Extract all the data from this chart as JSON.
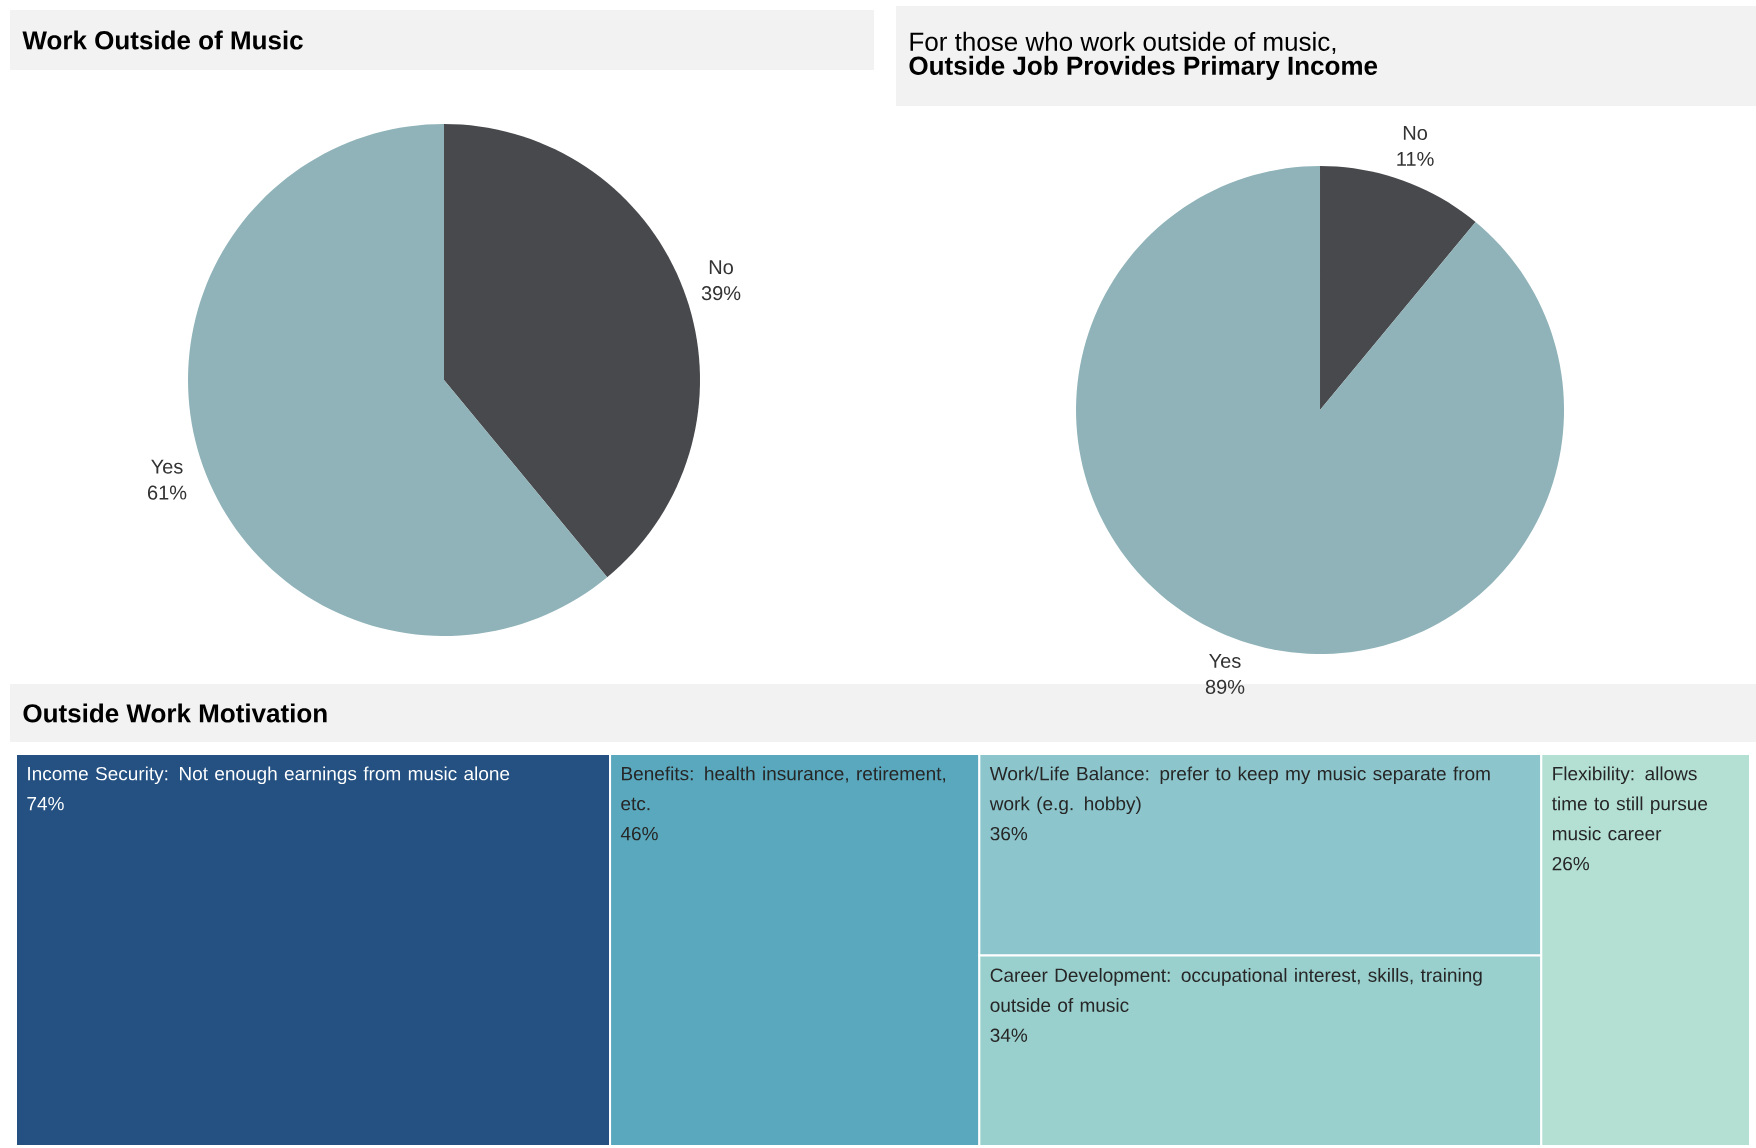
{
  "chart_data": [
    {
      "type": "pie",
      "title": "Work Outside of Music",
      "categories": [
        "No",
        "Yes"
      ],
      "values": [
        39,
        61
      ],
      "value_labels": [
        "39%",
        "61%"
      ],
      "colors": [
        "#48494d",
        "#8fb3b9"
      ]
    },
    {
      "type": "pie",
      "subtitle": "For those who work outside of music,",
      "title": "Outside Job Provides Primary Income",
      "categories": [
        "No",
        "Yes"
      ],
      "values": [
        11,
        89
      ],
      "value_labels": [
        "11%",
        "89%"
      ],
      "colors": [
        "#48494d",
        "#8fb3b9"
      ]
    },
    {
      "type": "other",
      "title": "Outside Work Motivation",
      "categories": [
        "Income Security: Not enough earnings from music alone",
        "Benefits: health insurance, retirement, etc.",
        "Work/Life Balance: prefer to keep my music separate from work (e.g. hobby)",
        "Career Development: occupational interest, skills, training outside of music",
        "Flexibility: allows time to still pursue music career"
      ],
      "values": [
        74,
        46,
        36,
        34,
        26
      ],
      "value_labels": [
        "74%",
        "46%",
        "36%",
        "34%",
        "26%"
      ],
      "colors": [
        "#245181",
        "#5aa8bd",
        "#8cc6cc",
        "#99cfcc",
        "#b4e0d4"
      ]
    }
  ]
}
